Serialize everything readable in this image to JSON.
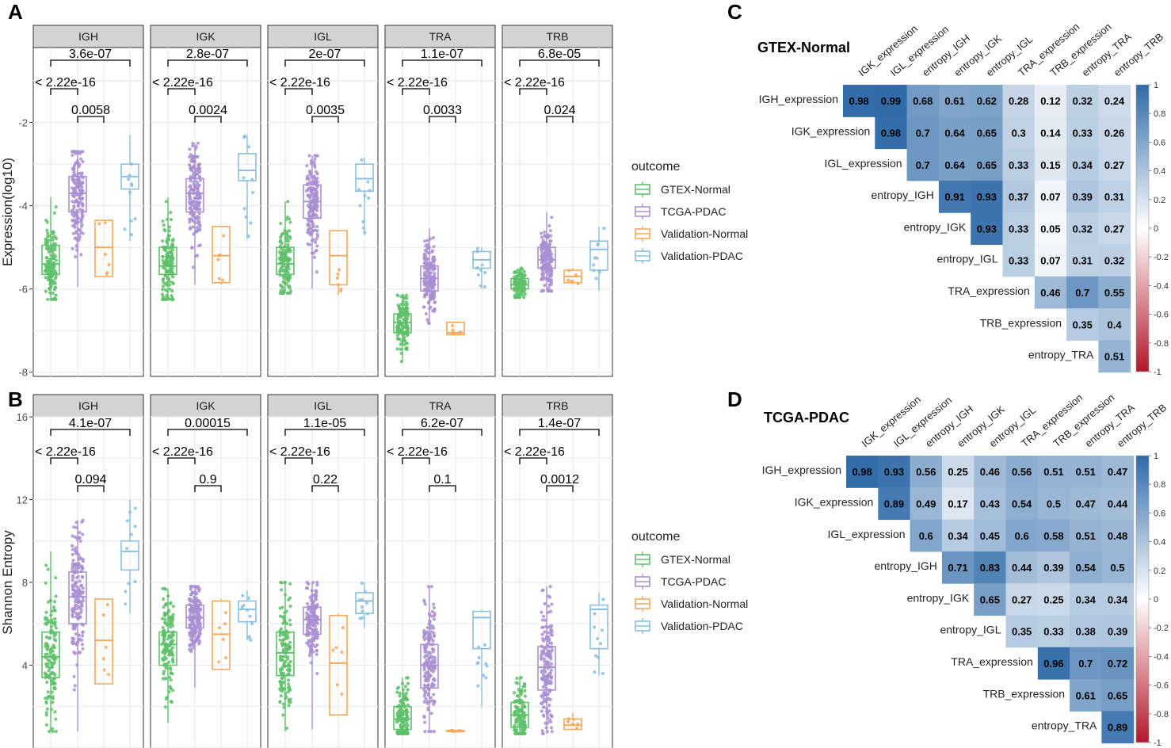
{
  "figure": {
    "panel_letters": [
      "A",
      "B",
      "C",
      "D"
    ]
  },
  "colors": {
    "GTEX-Normal": "#5ec16a",
    "TCGA-PDAC": "#a98fd2",
    "Validation-Normal": "#f7a95c",
    "Validation-PDAC": "#89bfe0",
    "strip_fill": "#d3d3d3",
    "grid": "#ebebeb",
    "corr_pos": "#2f6aa8",
    "corr_neg": "#b2182b"
  },
  "chart_data": [
    {
      "id": "A",
      "type": "box",
      "ylabel": "Expression(log10)",
      "xlabel": "",
      "ylim": [
        -8.1,
        -0.2
      ],
      "yticks": [
        -8,
        -6,
        -4,
        -2
      ],
      "legend_title": "outcome",
      "groups": [
        "GTEX-Normal",
        "TCGA-PDAC",
        "Validation-Normal",
        "Validation-PDAC"
      ],
      "facets": [
        {
          "label": "IGH",
          "pvals": [
            "3.6e-07",
            "< 2.22e-16",
            "0.0058"
          ],
          "boxes": [
            {
              "group": "GTEX-Normal",
              "q1": -5.65,
              "med": -5.4,
              "q3": -4.95,
              "lo": -6.25,
              "hi": -3.8
            },
            {
              "group": "TCGA-PDAC",
              "q1": -4.15,
              "med": -3.7,
              "q3": -3.3,
              "lo": -5.95,
              "hi": -2.7
            },
            {
              "group": "Validation-Normal",
              "q1": -5.7,
              "med": -5.0,
              "q3": -4.35,
              "lo": -5.7,
              "hi": -4.35
            },
            {
              "group": "Validation-PDAC",
              "q1": -3.6,
              "med": -3.3,
              "q3": -3.0,
              "lo": -4.85,
              "hi": -2.3
            }
          ]
        },
        {
          "label": "IGK",
          "pvals": [
            "2.8e-07",
            "< 2.22e-16",
            "0.0024"
          ],
          "boxes": [
            {
              "group": "GTEX-Normal",
              "q1": -5.65,
              "med": -5.45,
              "q3": -5.0,
              "lo": -6.25,
              "hi": -3.8
            },
            {
              "group": "TCGA-PDAC",
              "q1": -4.15,
              "med": -3.7,
              "q3": -3.35,
              "lo": -5.9,
              "hi": -2.5
            },
            {
              "group": "Validation-Normal",
              "q1": -5.85,
              "med": -5.2,
              "q3": -4.5,
              "lo": -5.9,
              "hi": -4.5
            },
            {
              "group": "Validation-PDAC",
              "q1": -3.4,
              "med": -3.15,
              "q3": -2.75,
              "lo": -4.8,
              "hi": -2.3
            }
          ]
        },
        {
          "label": "IGL",
          "pvals": [
            "2e-07",
            "< 2.22e-16",
            "0.0035"
          ],
          "boxes": [
            {
              "group": "GTEX-Normal",
              "q1": -5.65,
              "med": -5.4,
              "q3": -5.0,
              "lo": -6.1,
              "hi": -3.9
            },
            {
              "group": "TCGA-PDAC",
              "q1": -4.3,
              "med": -3.9,
              "q3": -3.5,
              "lo": -6.0,
              "hi": -2.8
            },
            {
              "group": "Validation-Normal",
              "q1": -5.9,
              "med": -5.2,
              "q3": -4.6,
              "lo": -6.15,
              "hi": -4.6
            },
            {
              "group": "Validation-PDAC",
              "q1": -3.65,
              "med": -3.35,
              "q3": -3.0,
              "lo": -4.7,
              "hi": -2.85
            }
          ]
        },
        {
          "label": "TRA",
          "pvals": [
            "1.1e-07",
            "< 2.22e-16",
            "0.0033"
          ],
          "boxes": [
            {
              "group": "GTEX-Normal",
              "q1": -7.05,
              "med": -6.8,
              "q3": -6.6,
              "lo": -7.75,
              "hi": -6.15
            },
            {
              "group": "TCGA-PDAC",
              "q1": -6.05,
              "med": -5.75,
              "q3": -5.45,
              "lo": -6.85,
              "hi": -4.55
            },
            {
              "group": "Validation-Normal",
              "q1": -7.1,
              "med": -7.05,
              "q3": -6.8,
              "lo": -7.1,
              "hi": -6.8
            },
            {
              "group": "Validation-PDAC",
              "q1": -5.5,
              "med": -5.3,
              "q3": -5.1,
              "lo": -6.0,
              "hi": -5.0
            }
          ]
        },
        {
          "label": "TRB",
          "pvals": [
            "6.8e-05",
            "< 2.22e-16",
            "0.024"
          ],
          "boxes": [
            {
              "group": "GTEX-Normal",
              "q1": -6.0,
              "med": -5.9,
              "q3": -5.75,
              "lo": -6.2,
              "hi": -5.5
            },
            {
              "group": "TCGA-PDAC",
              "q1": -5.5,
              "med": -5.3,
              "q3": -5.0,
              "lo": -6.05,
              "hi": -4.15
            },
            {
              "group": "Validation-Normal",
              "q1": -5.85,
              "med": -5.7,
              "q3": -5.55,
              "lo": -5.9,
              "hi": -5.5
            },
            {
              "group": "Validation-PDAC",
              "q1": -5.55,
              "med": -5.05,
              "q3": -4.85,
              "lo": -6.05,
              "hi": -4.5
            }
          ]
        }
      ]
    },
    {
      "id": "B",
      "type": "box",
      "ylabel": "Shannon Entropy",
      "xlabel": "",
      "ylim": [
        0,
        16
      ],
      "yticks": [
        4,
        8,
        12,
        16
      ],
      "legend_title": "outcome",
      "groups": [
        "GTEX-Normal",
        "TCGA-PDAC",
        "Validation-Normal",
        "Validation-PDAC"
      ],
      "facets": [
        {
          "label": "IGH",
          "pvals": [
            "4.1e-07",
            "< 2.22e-16",
            "0.094"
          ],
          "boxes": [
            {
              "group": "GTEX-Normal",
              "q1": 3.4,
              "med": 4.4,
              "q3": 5.6,
              "lo": 0.8,
              "hi": 9.5
            },
            {
              "group": "TCGA-PDAC",
              "q1": 6.0,
              "med": 7.3,
              "q3": 8.5,
              "lo": 0.8,
              "hi": 11.0
            },
            {
              "group": "Validation-Normal",
              "q1": 3.1,
              "med": 5.2,
              "q3": 7.2,
              "lo": 3.1,
              "hi": 7.2
            },
            {
              "group": "Validation-PDAC",
              "q1": 8.6,
              "med": 9.5,
              "q3": 10.0,
              "lo": 6.5,
              "hi": 12.0
            }
          ]
        },
        {
          "label": "IGK",
          "pvals": [
            "0.00015",
            "< 2.22e-16",
            "0.9"
          ],
          "boxes": [
            {
              "group": "GTEX-Normal",
              "q1": 4.0,
              "med": 5.0,
              "q3": 5.6,
              "lo": 1.2,
              "hi": 7.7
            },
            {
              "group": "TCGA-PDAC",
              "q1": 5.8,
              "med": 6.3,
              "q3": 6.9,
              "lo": 2.9,
              "hi": 7.8
            },
            {
              "group": "Validation-Normal",
              "q1": 3.8,
              "med": 5.5,
              "q3": 7.1,
              "lo": 3.8,
              "hi": 7.2
            },
            {
              "group": "Validation-PDAC",
              "q1": 6.1,
              "med": 6.7,
              "q3": 7.1,
              "lo": 5.2,
              "hi": 7.6
            }
          ]
        },
        {
          "label": "IGL",
          "pvals": [
            "1.1e-05",
            "< 2.22e-16",
            "0.22"
          ],
          "boxes": [
            {
              "group": "GTEX-Normal",
              "q1": 3.5,
              "med": 4.6,
              "q3": 5.6,
              "lo": 0.8,
              "hi": 8.0
            },
            {
              "group": "TCGA-PDAC",
              "q1": 5.5,
              "med": 6.2,
              "q3": 6.8,
              "lo": 0.9,
              "hi": 8.0
            },
            {
              "group": "Validation-Normal",
              "q1": 1.6,
              "med": 4.1,
              "q3": 6.4,
              "lo": 1.6,
              "hi": 6.5
            },
            {
              "group": "Validation-PDAC",
              "q1": 6.5,
              "med": 7.1,
              "q3": 7.5,
              "lo": 5.8,
              "hi": 8.0
            }
          ]
        },
        {
          "label": "TRA",
          "pvals": [
            "6.2e-07",
            "< 2.22e-16",
            "0.1"
          ],
          "boxes": [
            {
              "group": "GTEX-Normal",
              "q1": 0.9,
              "med": 1.4,
              "q3": 2.0,
              "lo": 0.7,
              "hi": 3.4
            },
            {
              "group": "TCGA-PDAC",
              "q1": 2.9,
              "med": 4.0,
              "q3": 5.0,
              "lo": 0.8,
              "hi": 7.8
            },
            {
              "group": "Validation-Normal",
              "q1": 0.8,
              "med": 0.8,
              "q3": 0.85,
              "lo": 0.8,
              "hi": 0.85
            },
            {
              "group": "Validation-PDAC",
              "q1": 4.8,
              "med": 6.3,
              "q3": 6.6,
              "lo": 2.0,
              "hi": 6.7
            }
          ]
        },
        {
          "label": "TRB",
          "pvals": [
            "1.4e-07",
            "< 2.22e-16",
            "0.0012"
          ],
          "boxes": [
            {
              "group": "GTEX-Normal",
              "q1": 1.0,
              "med": 1.6,
              "q3": 2.2,
              "lo": 0.7,
              "hi": 3.4
            },
            {
              "group": "TCGA-PDAC",
              "q1": 2.8,
              "med": 3.9,
              "q3": 4.9,
              "lo": 0.7,
              "hi": 7.8
            },
            {
              "group": "Validation-Normal",
              "q1": 0.9,
              "med": 1.1,
              "q3": 1.4,
              "lo": 0.9,
              "hi": 1.7
            },
            {
              "group": "Validation-PDAC",
              "q1": 4.8,
              "med": 6.7,
              "q3": 6.9,
              "lo": 3.5,
              "hi": 7.5
            }
          ]
        }
      ]
    },
    {
      "id": "C",
      "type": "heatmap",
      "title": "GTEX-Normal",
      "row_labels": [
        "IGH_expression",
        "IGK_expression",
        "IGL_expression",
        "entropy_IGH",
        "entropy_IGK",
        "entropy_IGL",
        "TRA_expression",
        "TRB_expression",
        "entropy_TRA"
      ],
      "col_labels": [
        "IGK_expression",
        "IGL_expression",
        "entropy_IGH",
        "entropy_IGK",
        "entropy_IGL",
        "TRA_expression",
        "TRB_expression",
        "entropy_TRA",
        "entropy_TRB"
      ],
      "values": [
        [
          "0.98",
          "0.99",
          "0.68",
          "0.61",
          "0.62",
          "0.28",
          "0.12",
          "0.32",
          "0.24"
        ],
        [
          "0.98",
          "0.7",
          "0.64",
          "0.65",
          "0.3",
          "0.14",
          "0.33",
          "0.26"
        ],
        [
          "0.7",
          "0.64",
          "0.65",
          "0.33",
          "0.15",
          "0.34",
          "0.27"
        ],
        [
          "0.91",
          "0.93",
          "0.37",
          "0.07",
          "0.39",
          "0.31"
        ],
        [
          "0.93",
          "0.33",
          "0.05",
          "0.32",
          "0.27"
        ],
        [
          "0.33",
          "0.07",
          "0.31",
          "0.32"
        ],
        [
          "0.46",
          "0.7",
          "0.55"
        ],
        [
          "0.35",
          "0.4"
        ],
        [
          "0.51"
        ]
      ],
      "colorbar_ticks": [
        "1",
        "0.8",
        "0.6",
        "0.4",
        "0.2",
        "0",
        "-0.2",
        "-0.4",
        "-0.6",
        "-0.8",
        "-1"
      ],
      "range": [
        -1,
        1
      ]
    },
    {
      "id": "D",
      "type": "heatmap",
      "title": "TCGA-PDAC",
      "row_labels": [
        "IGH_expression",
        "IGK_expression",
        "IGL_expression",
        "entropy_IGH",
        "entropy_IGK",
        "entropy_IGL",
        "TRA_expression",
        "TRB_expression",
        "entropy_TRA"
      ],
      "col_labels": [
        "IGK_expression",
        "IGL_expression",
        "entropy_IGH",
        "entropy_IGK",
        "entropy_IGL",
        "TRA_expression",
        "TRB_expression",
        "entropy_TRA",
        "entropy_TRB"
      ],
      "values": [
        [
          "0.98",
          "0.93",
          "0.56",
          "0.25",
          "0.46",
          "0.56",
          "0.51",
          "0.51",
          "0.47"
        ],
        [
          "0.89",
          "0.49",
          "0.17",
          "0.43",
          "0.54",
          "0.5",
          "0.47",
          "0.44"
        ],
        [
          "0.6",
          "0.34",
          "0.45",
          "0.6",
          "0.58",
          "0.51",
          "0.48"
        ],
        [
          "0.71",
          "0.83",
          "0.44",
          "0.39",
          "0.54",
          "0.5"
        ],
        [
          "0.65",
          "0.27",
          "0.25",
          "0.34",
          "0.34"
        ],
        [
          "0.35",
          "0.33",
          "0.38",
          "0.39"
        ],
        [
          "0.96",
          "0.7",
          "0.72"
        ],
        [
          "0.61",
          "0.65"
        ],
        [
          "0.89"
        ]
      ],
      "colorbar_ticks": [
        "1",
        "0.8",
        "0.6",
        "0.4",
        "0.2",
        "0",
        "-0.2",
        "-0.4",
        "-0.6",
        "-0.8",
        "-1"
      ],
      "range": [
        -1,
        1
      ]
    }
  ]
}
